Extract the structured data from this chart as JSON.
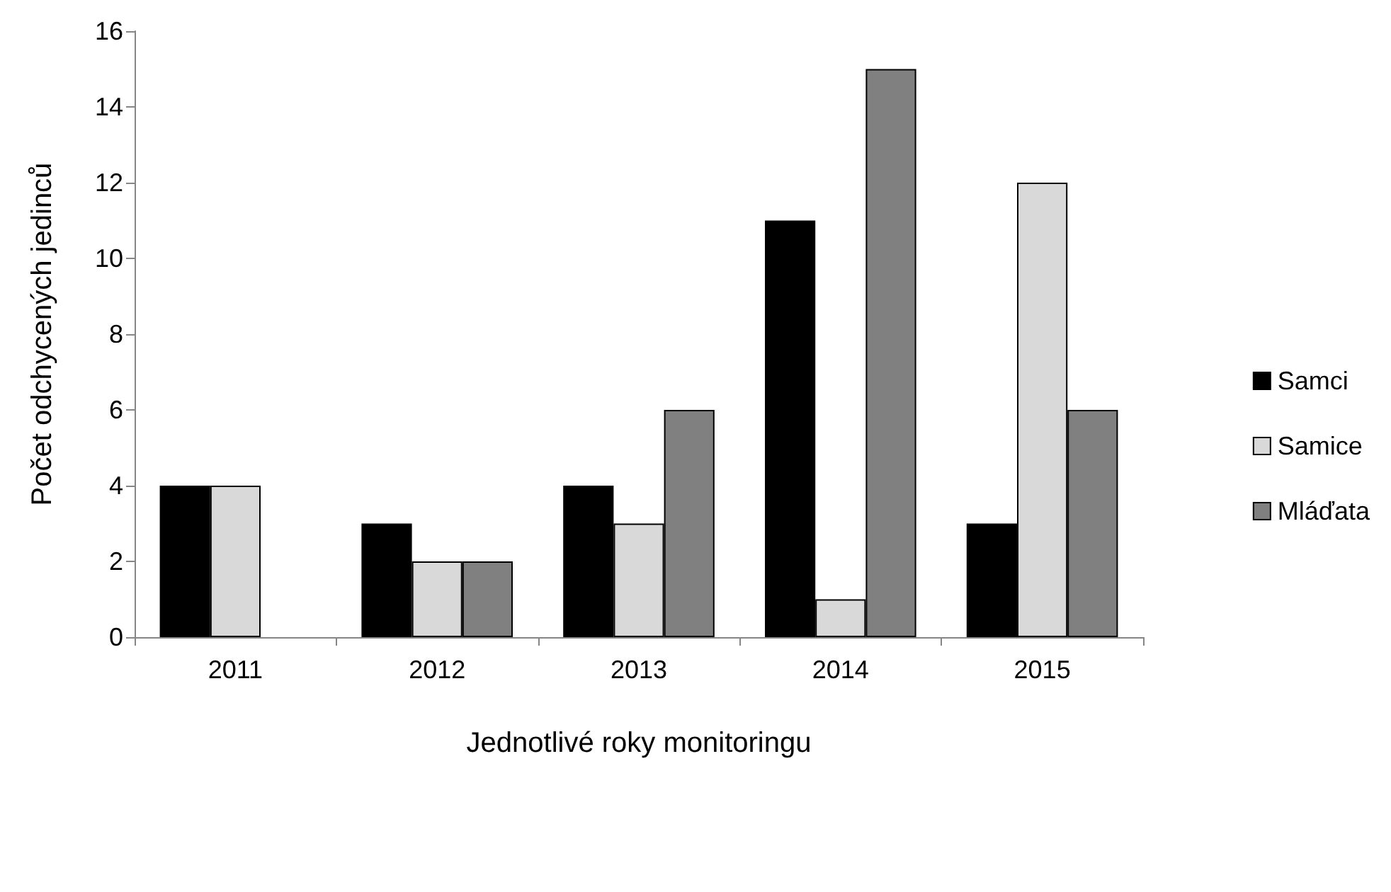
{
  "chart_data": {
    "type": "bar",
    "xlabel": "Jednotlivé roky monitoringu",
    "ylabel": "Počet odchycených jedinců",
    "categories": [
      "2011",
      "2012",
      "2013",
      "2014",
      "2015"
    ],
    "series": [
      {
        "name": "Samci",
        "color": "#000000",
        "values": [
          4,
          3,
          4,
          11,
          3
        ]
      },
      {
        "name": "Samice",
        "color": "#d9d9d9",
        "values": [
          4,
          2,
          3,
          1,
          12
        ]
      },
      {
        "name": "Mláďata",
        "color": "#808080",
        "values": [
          null,
          2,
          6,
          15,
          6
        ]
      }
    ],
    "ylim": [
      0,
      16
    ],
    "yticks": [
      0,
      2,
      4,
      6,
      8,
      10,
      12,
      14,
      16
    ],
    "grid": false,
    "legend": "right"
  }
}
